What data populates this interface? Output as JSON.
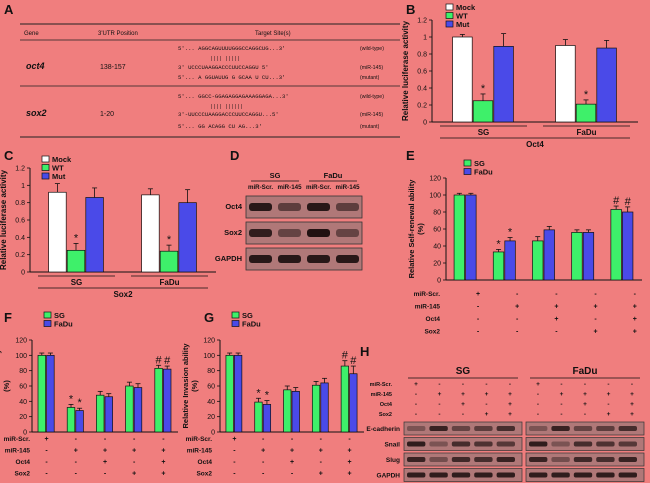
{
  "panel_letters": [
    "A",
    "B",
    "C",
    "D",
    "E",
    "F",
    "G",
    "H"
  ],
  "colors": {
    "mock": "#ffffff",
    "wt": "#3ef06a",
    "mut": "#4a4ae8",
    "sg": "#3ef06a",
    "fadu": "#4a4ae8",
    "background": "#f07e7e"
  },
  "table_a": {
    "headers": [
      "Gene",
      "3'UTR Position",
      "Target Site(s)"
    ],
    "rows": [
      {
        "gene": "oct4",
        "position": "138-157",
        "lines": [
          {
            "seq": "5'... AGGCAGUUUUGGGCCAGGCUG...3'",
            "tag": "(wild-type)"
          },
          {
            "seq": "3'  UCCCUAAGGACCCUUCCAGGU  5'",
            "tag": "(miR-145)"
          },
          {
            "seq": "5'... A  GGUAUUG  G GCAA U  CU...3'",
            "tag": "(mutant)"
          }
        ]
      },
      {
        "gene": "sox2",
        "position": "1-20",
        "lines": [
          {
            "seq": "5'... GGCC-GGAGAGGAGAAAGGAGA...3'",
            "tag": "(wild-type)"
          },
          {
            "seq": "3'-UUCCCUAAGGACCCUUCCAGGU...5'",
            "tag": "(miR-145)"
          },
          {
            "seq": "5'... GG   ACAGG    CU   AG...3'",
            "tag": "(mutant)"
          }
        ]
      }
    ]
  },
  "blot_d": {
    "groups": [
      "SG",
      "FaDu"
    ],
    "lanes": [
      "miR-Scr.",
      "miR-145",
      "miR-Scr.",
      "miR-145"
    ],
    "rows": [
      "Oct4",
      "Sox2",
      "GAPDH"
    ]
  },
  "treatment_table": {
    "rows": [
      "miR-Scr.",
      "miR-145",
      "Oct4",
      "Sox2"
    ],
    "signs": [
      [
        "+",
        "-",
        "-",
        "-",
        "-"
      ],
      [
        "-",
        "+",
        "+",
        "+",
        "+"
      ],
      [
        "-",
        "-",
        "+",
        "-",
        "+"
      ],
      [
        "-",
        "-",
        "-",
        "+",
        "+"
      ]
    ]
  },
  "blot_h": {
    "groups": [
      "SG",
      "FaDu"
    ],
    "treatment_rows": [
      "miR-Scr.",
      "miR-145",
      "Oct4",
      "Sox2"
    ],
    "signs": [
      [
        "+",
        "-",
        "-",
        "-",
        "-"
      ],
      [
        "-",
        "+",
        "+",
        "+",
        "+"
      ],
      [
        "-",
        "-",
        "+",
        "-",
        "+"
      ],
      [
        "-",
        "-",
        "-",
        "+",
        "+"
      ]
    ],
    "rows": [
      "E-cadherin",
      "Snail",
      "Slug",
      "GAPDH"
    ]
  },
  "chart_data": [
    {
      "panel": "B",
      "type": "bar",
      "ylabel": "Relative luciferase activity",
      "ylim": [
        0,
        1.2
      ],
      "yticks": [
        0,
        0.2,
        0.4,
        0.6,
        0.8,
        1,
        1.2
      ],
      "categories": [
        "SG",
        "FaDu"
      ],
      "xgroup_label": "Oct4",
      "legend": [
        "Mock",
        "WT",
        "Mut"
      ],
      "series": [
        {
          "name": "Mock",
          "values": [
            1.0,
            0.9
          ],
          "errors": [
            0.03,
            0.07
          ]
        },
        {
          "name": "WT",
          "values": [
            0.25,
            0.21
          ],
          "errors": [
            0.08,
            0.05
          ]
        },
        {
          "name": "Mut",
          "values": [
            0.89,
            0.87
          ],
          "errors": [
            0.15,
            0.09
          ]
        }
      ],
      "annotations": [
        {
          "series": 1,
          "category": 0,
          "text": "*"
        },
        {
          "series": 1,
          "category": 1,
          "text": "*"
        }
      ]
    },
    {
      "panel": "C",
      "type": "bar",
      "ylabel": "Relative luciferase activity",
      "ylim": [
        0,
        1.2
      ],
      "yticks": [
        0,
        0.2,
        0.4,
        0.6,
        0.8,
        1,
        1.2
      ],
      "categories": [
        "SG",
        "FaDu"
      ],
      "xgroup_label": "Sox2",
      "legend": [
        "Mock",
        "WT",
        "Mut"
      ],
      "series": [
        {
          "name": "Mock",
          "values": [
            0.92,
            0.89
          ],
          "errors": [
            0.1,
            0.07
          ]
        },
        {
          "name": "WT",
          "values": [
            0.25,
            0.24
          ],
          "errors": [
            0.08,
            0.07
          ]
        },
        {
          "name": "Mut",
          "values": [
            0.86,
            0.8
          ],
          "errors": [
            0.11,
            0.15
          ]
        }
      ],
      "annotations": [
        {
          "series": 1,
          "category": 0,
          "text": "*"
        },
        {
          "series": 1,
          "category": 1,
          "text": "*"
        }
      ]
    },
    {
      "panel": "E",
      "type": "bar",
      "ylabel": "Relative Self-renewal ability (%)",
      "ylim": [
        0,
        120
      ],
      "yticks": [
        0,
        20,
        40,
        60,
        80,
        100,
        120
      ],
      "categories": [
        "1",
        "2",
        "3",
        "4",
        "5"
      ],
      "legend": [
        "SG",
        "FaDu"
      ],
      "series": [
        {
          "name": "SG",
          "values": [
            100,
            33,
            46,
            56,
            83
          ],
          "errors": [
            2,
            3,
            5,
            3,
            4
          ]
        },
        {
          "name": "FaDu",
          "values": [
            100,
            46,
            59,
            56,
            80
          ],
          "errors": [
            2,
            4,
            4,
            3,
            6
          ]
        }
      ],
      "annotations": [
        {
          "series": 0,
          "category": 1,
          "text": "*"
        },
        {
          "series": 1,
          "category": 1,
          "text": "*"
        },
        {
          "series": 0,
          "category": 4,
          "text": "#"
        },
        {
          "series": 1,
          "category": 4,
          "text": "#"
        }
      ]
    },
    {
      "panel": "F",
      "type": "bar",
      "ylabel": "Relative C.F.U ability (%)",
      "ylim": [
        0,
        120
      ],
      "yticks": [
        0,
        20,
        40,
        60,
        80,
        100,
        120
      ],
      "categories": [
        "1",
        "2",
        "3",
        "4",
        "5"
      ],
      "legend": [
        "SG",
        "FaDu"
      ],
      "series": [
        {
          "name": "SG",
          "values": [
            100,
            32,
            48,
            60,
            83
          ],
          "errors": [
            3,
            4,
            5,
            5,
            4
          ]
        },
        {
          "name": "FaDu",
          "values": [
            100,
            28,
            46,
            58,
            82
          ],
          "errors": [
            3,
            3,
            4,
            5,
            4
          ]
        }
      ],
      "annotations": [
        {
          "series": 0,
          "category": 1,
          "text": "*"
        },
        {
          "series": 1,
          "category": 1,
          "text": "*"
        },
        {
          "series": 0,
          "category": 4,
          "text": "#"
        },
        {
          "series": 1,
          "category": 4,
          "text": "#"
        }
      ]
    },
    {
      "panel": "G",
      "type": "bar",
      "ylabel": "Relative Invasion ability (%)",
      "ylim": [
        0,
        120
      ],
      "yticks": [
        0,
        20,
        40,
        60,
        80,
        100,
        120
      ],
      "categories": [
        "1",
        "2",
        "3",
        "4",
        "5"
      ],
      "legend": [
        "SG",
        "FaDu"
      ],
      "series": [
        {
          "name": "SG",
          "values": [
            100,
            39,
            55,
            61,
            86
          ],
          "errors": [
            3,
            5,
            5,
            5,
            7
          ]
        },
        {
          "name": "FaDu",
          "values": [
            100,
            36,
            53,
            64,
            76
          ],
          "errors": [
            3,
            5,
            5,
            6,
            10
          ]
        }
      ],
      "annotations": [
        {
          "series": 0,
          "category": 1,
          "text": "*"
        },
        {
          "series": 1,
          "category": 1,
          "text": "*"
        },
        {
          "series": 0,
          "category": 4,
          "text": "#"
        },
        {
          "series": 1,
          "category": 4,
          "text": "#"
        }
      ]
    }
  ]
}
